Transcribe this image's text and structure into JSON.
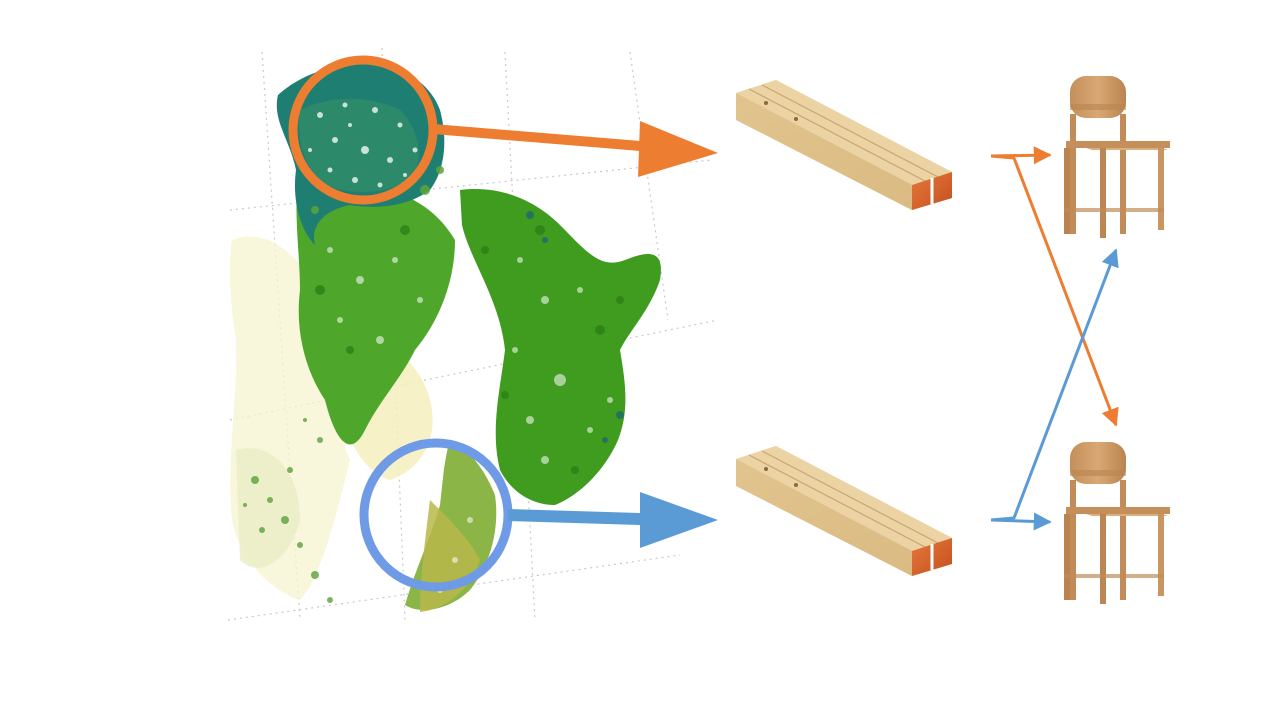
{
  "diagram": {
    "colors": {
      "origin_north": "#ed7d31",
      "origin_south": "#5b9bd5",
      "origin_south_circle": "#6f9ae6",
      "forest_dark": "#1d6b6e",
      "forest_green": "#3e9a1e",
      "forest_yellow": "#f3efb6",
      "timber": "#e5c896",
      "timber_end": "#d9622a",
      "chair_wood": "#cc9a66",
      "grid_line": "#c8c8c8"
    },
    "nodes": {
      "map": {
        "icon": "forest-map-icon",
        "regions": [
          "north",
          "south"
        ]
      },
      "timbers": [
        {
          "icon": "timber-beams-icon",
          "origin": "north"
        },
        {
          "icon": "timber-beams-icon",
          "origin": "south"
        }
      ],
      "chairs": [
        {
          "icon": "wooden-chair-icon",
          "wood_origin": "south"
        },
        {
          "icon": "wooden-chair-icon",
          "wood_origin": "north"
        }
      ]
    },
    "flows": [
      {
        "from": "north-region",
        "to": "timber-top",
        "color": "origin_north"
      },
      {
        "from": "south-region",
        "to": "timber-bottom",
        "color": "origin_south"
      },
      {
        "from": "timber-top",
        "to": "chair-top",
        "color": "origin_north"
      },
      {
        "from": "timber-top",
        "to": "chair-bottom",
        "color": "origin_north"
      },
      {
        "from": "timber-bottom",
        "to": "chair-bottom",
        "color": "origin_south"
      },
      {
        "from": "timber-bottom",
        "to": "chair-top",
        "color": "origin_south"
      }
    ]
  }
}
